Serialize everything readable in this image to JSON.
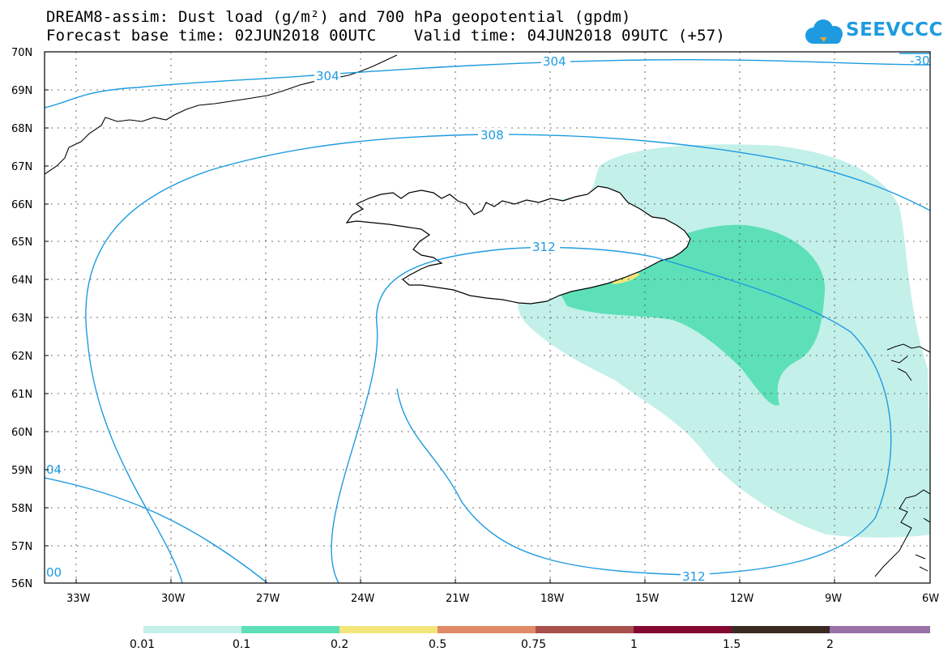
{
  "header": {
    "title_line1": "DREAM8-assim: Dust load (g/m²) and 700 hPa geopotential (gpdm)",
    "title_line2": "Forecast base time: 02JUN2018 00UTC    Valid time: 04JUN2018 09UTC (+57)"
  },
  "logo": {
    "text": "SEEVCCC",
    "icon": "cloud-icon",
    "color": "#1e9be0"
  },
  "map": {
    "type": "contour-map",
    "region": "Iceland and North Atlantic",
    "lat_range": [
      56,
      70
    ],
    "lon_range": [
      -34,
      -6
    ],
    "lat_labels": [
      "70N",
      "69N",
      "68N",
      "67N",
      "66N",
      "65N",
      "64N",
      "63N",
      "62N",
      "61N",
      "60N",
      "59N",
      "58N",
      "57N",
      "56N"
    ],
    "lon_labels": [
      "33W",
      "30W",
      "27W",
      "24W",
      "21W",
      "18W",
      "15W",
      "12W",
      "9W",
      "6W"
    ],
    "grid": "dotted",
    "contour_color": "#1e9be0",
    "contour_labels": [
      "304",
      "304",
      "-30",
      "308",
      "312",
      "312",
      "04",
      "00"
    ]
  },
  "legend": {
    "colors": [
      "#c4f0ea",
      "#5de0b8",
      "#f2e67a",
      "#e08a66",
      "#a8504c",
      "#820a30",
      "#3a2a22",
      "#9a72a8"
    ],
    "labels": [
      "0.01",
      "0.1",
      "0.2",
      "0.5",
      "0.75",
      "1",
      "1.5",
      "2"
    ]
  }
}
